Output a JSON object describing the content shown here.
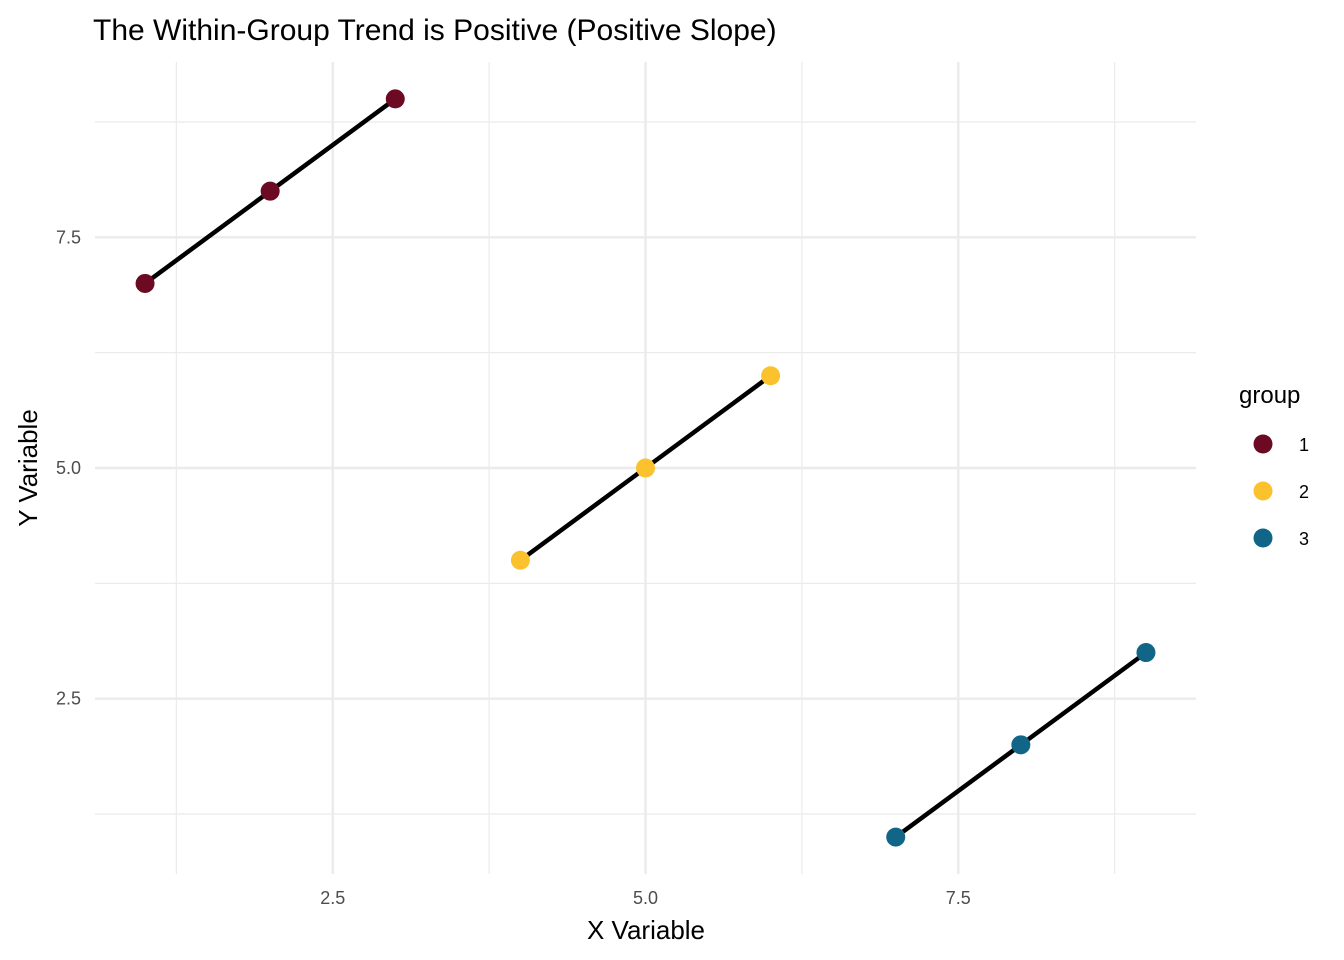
{
  "chart_data": {
    "type": "scatter",
    "title": "The Within-Group Trend is Positive (Positive Slope)",
    "xlabel": "X Variable",
    "ylabel": "Y Variable",
    "xlim": [
      0.6,
      9.4
    ],
    "ylim": [
      0.6,
      9.4
    ],
    "x_ticks": [
      2.5,
      5.0,
      7.5
    ],
    "x_tick_labels": [
      "2.5",
      "5.0",
      "7.5"
    ],
    "y_ticks": [
      2.5,
      5.0,
      7.5
    ],
    "y_tick_labels": [
      "2.5",
      "5.0",
      "7.5"
    ],
    "x_minor": [
      1.25,
      3.75,
      6.25,
      8.75
    ],
    "y_minor": [
      1.25,
      3.75,
      6.25,
      8.75
    ],
    "grid": true,
    "legend": {
      "title": "group",
      "position": "right"
    },
    "series": [
      {
        "name": "1",
        "color": "#6b0a22",
        "x": [
          1,
          2,
          3
        ],
        "y": [
          7,
          8,
          9
        ]
      },
      {
        "name": "2",
        "color": "#fcc22d",
        "x": [
          4,
          5,
          6
        ],
        "y": [
          4,
          5,
          6
        ]
      },
      {
        "name": "3",
        "color": "#116688",
        "x": [
          7,
          8,
          9
        ],
        "y": [
          1,
          2,
          3
        ]
      }
    ],
    "fit_lines": [
      {
        "group": "1",
        "x": [
          1,
          3
        ],
        "y": [
          7,
          9
        ],
        "color": "#000000"
      },
      {
        "group": "2",
        "x": [
          4,
          6
        ],
        "y": [
          4,
          6
        ],
        "color": "#000000"
      },
      {
        "group": "3",
        "x": [
          7,
          9
        ],
        "y": [
          1,
          3
        ],
        "color": "#000000"
      }
    ]
  }
}
